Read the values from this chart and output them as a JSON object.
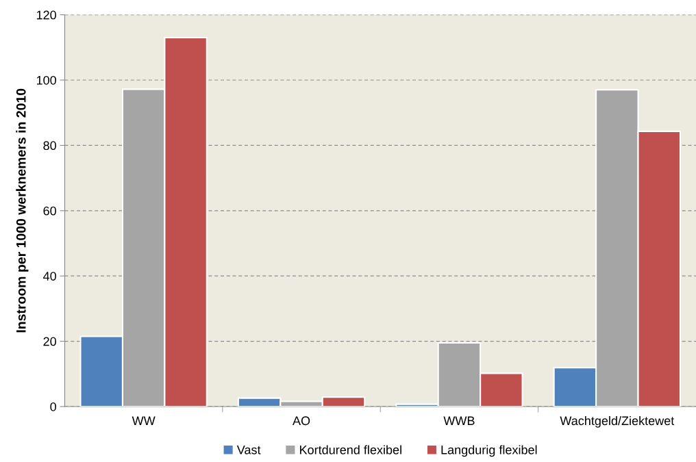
{
  "chart_data": {
    "type": "bar",
    "ylabel": "Instroom per 1000 werknemers in 2010",
    "categories": [
      "WW",
      "AO",
      "WWB",
      "Wachtgeld/Ziektewet"
    ],
    "series": [
      {
        "name": "Vast",
        "color": "#4f81bd",
        "values": [
          21.5,
          2.6,
          0.7,
          11.9
        ]
      },
      {
        "name": "Kortdurend flexibel",
        "color": "#a5a5a5",
        "values": [
          97.2,
          1.6,
          19.5,
          97.0
        ]
      },
      {
        "name": "Langdurig flexibel",
        "color": "#c0504d",
        "values": [
          113.0,
          2.9,
          10.2,
          84.3
        ]
      }
    ],
    "ylim": [
      0,
      120
    ],
    "yticks": [
      0,
      20,
      40,
      60,
      80,
      100,
      120
    ],
    "grid": "y",
    "legend": "bottom"
  }
}
